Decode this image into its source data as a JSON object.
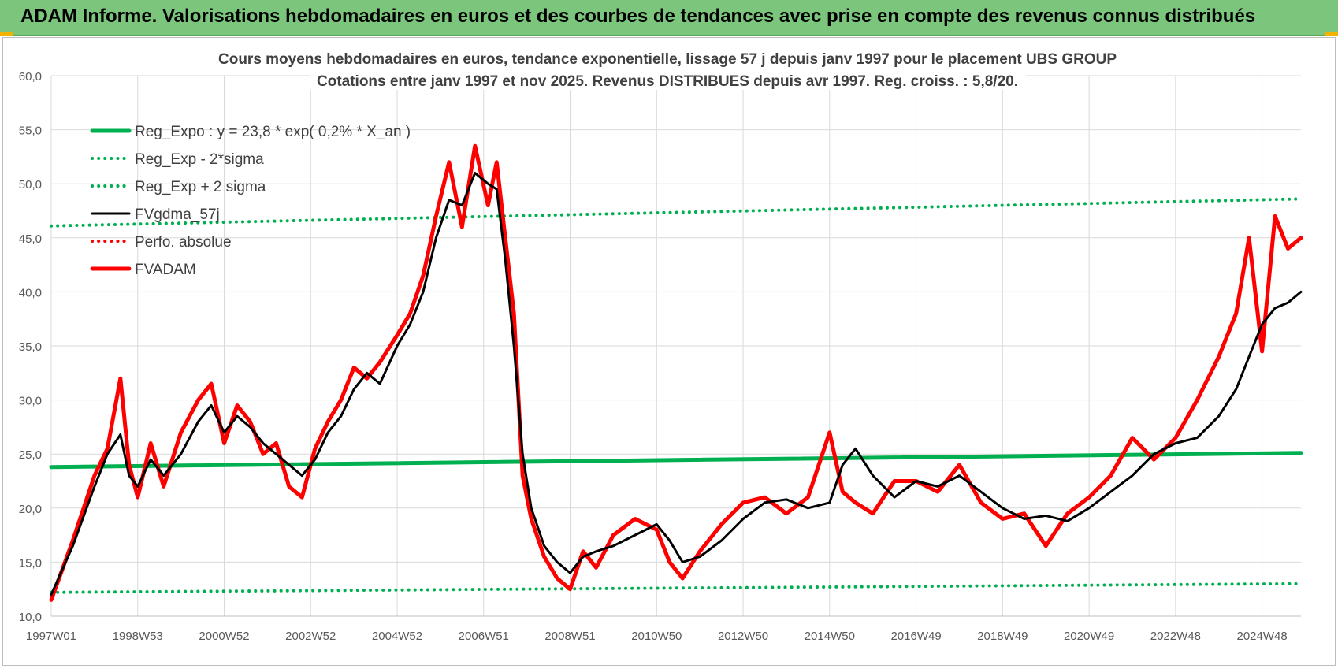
{
  "header": {
    "title": "ADAM Informe. Valorisations hebdomadaires en euros et des courbes de tendances avec prise en compte des revenus connus distribués"
  },
  "colors": {
    "header_bg": "#7cc57d",
    "green": "#00b050",
    "black": "#000000",
    "red": "#ff0000",
    "grid": "#d9d9d9"
  },
  "chart_data": {
    "type": "line",
    "title": "Cours moyens hebdomadaires en euros, tendance exponentielle, lissage 57 j depuis janv 1997  pour le placement UBS GROUP",
    "subtitle": "Cotations entre janv 1997 et nov 2025. Revenus DISTRIBUES depuis avr 1997. Reg. croiss. : 5,8/20.",
    "xlabel": "",
    "ylabel": "",
    "ylim": [
      10,
      60
    ],
    "xlim": [
      1997.0,
      2025.9
    ],
    "y_ticks": [
      "10,0",
      "15,0",
      "20,0",
      "25,0",
      "30,0",
      "35,0",
      "40,0",
      "45,0",
      "50,0",
      "55,0",
      "60,0"
    ],
    "x_ticks": [
      "1997W01",
      "1998W53",
      "2000W52",
      "2002W52",
      "2004W52",
      "2006W51",
      "2008W51",
      "2010W50",
      "2012W50",
      "2014W50",
      "2016W49",
      "2018W49",
      "2020W49",
      "2022W48",
      "2024W48"
    ],
    "x_tick_years": [
      1997.0,
      1999.0,
      2001.0,
      2003.0,
      2005.0,
      2007.0,
      2009.0,
      2011.0,
      2013.0,
      2015.0,
      2017.0,
      2019.0,
      2021.0,
      2023.0,
      2025.0
    ],
    "grid": true,
    "legend_position": "top-left",
    "series": [
      {
        "name": "Reg_Expo : y = 23,8 * exp( 0,2% *  X_an )",
        "style": "solid-thick",
        "color": "#00b050",
        "x": [
          1997.0,
          2025.9
        ],
        "values": [
          23.8,
          25.1
        ]
      },
      {
        "name": "Reg_Exp - 2*sigma",
        "style": "dotted",
        "color": "#00b050",
        "x": [
          1997.0,
          2025.9
        ],
        "values": [
          12.2,
          13.0
        ]
      },
      {
        "name": "Reg_Exp + 2 sigma",
        "style": "dotted",
        "color": "#00b050",
        "x": [
          1997.0,
          2025.9
        ],
        "values": [
          46.1,
          48.6
        ]
      },
      {
        "name": "FVgdma_57j",
        "style": "solid",
        "color": "#000000",
        "x": [
          1997.0,
          1997.5,
          1998.0,
          1998.3,
          1998.6,
          1998.8,
          1999.0,
          1999.3,
          1999.6,
          2000.0,
          2000.4,
          2000.7,
          2001.0,
          2001.3,
          2001.6,
          2001.9,
          2002.2,
          2002.5,
          2002.8,
          2003.1,
          2003.4,
          2003.7,
          2004.0,
          2004.3,
          2004.6,
          2005.0,
          2005.3,
          2005.6,
          2005.9,
          2006.2,
          2006.5,
          2006.8,
          2007.1,
          2007.3,
          2007.5,
          2007.7,
          2007.9,
          2008.1,
          2008.4,
          2008.7,
          2009.0,
          2009.3,
          2009.6,
          2010.0,
          2010.5,
          2011.0,
          2011.3,
          2011.6,
          2012.0,
          2012.5,
          2013.0,
          2013.5,
          2014.0,
          2014.5,
          2015.0,
          2015.3,
          2015.6,
          2016.0,
          2016.5,
          2017.0,
          2017.5,
          2018.0,
          2018.5,
          2019.0,
          2019.5,
          2020.0,
          2020.5,
          2021.0,
          2021.5,
          2022.0,
          2022.5,
          2023.0,
          2023.5,
          2024.0,
          2024.4,
          2024.7,
          2025.0,
          2025.3,
          2025.6,
          2025.9
        ],
        "values": [
          12.0,
          16.5,
          22.0,
          25.0,
          26.8,
          23.0,
          22.0,
          24.5,
          23.0,
          25.0,
          28.0,
          29.5,
          27.0,
          28.5,
          27.5,
          26.0,
          25.0,
          24.0,
          23.0,
          24.5,
          27.0,
          28.5,
          31.0,
          32.5,
          31.5,
          35.0,
          37.0,
          40.0,
          45.0,
          48.5,
          48.0,
          51.0,
          50.0,
          49.5,
          43.0,
          35.0,
          25.0,
          20.0,
          16.5,
          15.0,
          14.0,
          15.5,
          16.0,
          16.5,
          17.5,
          18.5,
          17.0,
          15.0,
          15.5,
          17.0,
          19.0,
          20.5,
          20.8,
          20.0,
          20.5,
          24.0,
          25.5,
          23.0,
          21.0,
          22.5,
          22.0,
          23.0,
          21.5,
          20.0,
          19.0,
          19.3,
          18.8,
          20.0,
          21.5,
          23.0,
          25.0,
          26.0,
          26.5,
          28.5,
          31.0,
          34.0,
          37.0,
          38.5,
          39.0,
          40.0
        ]
      },
      {
        "name": "Perfo. absolue",
        "style": "dotted",
        "color": "#ff0000",
        "x": [],
        "values": []
      },
      {
        "name": "FVADAM",
        "style": "solid-thick",
        "color": "#ff0000",
        "x": [
          1997.0,
          1997.5,
          1998.0,
          1998.3,
          1998.6,
          1998.8,
          1999.0,
          1999.3,
          1999.6,
          2000.0,
          2000.4,
          2000.7,
          2001.0,
          2001.3,
          2001.6,
          2001.9,
          2002.2,
          2002.5,
          2002.8,
          2003.1,
          2003.4,
          2003.7,
          2004.0,
          2004.3,
          2004.6,
          2005.0,
          2005.3,
          2005.6,
          2005.9,
          2006.2,
          2006.5,
          2006.8,
          2007.1,
          2007.3,
          2007.5,
          2007.7,
          2007.9,
          2008.1,
          2008.4,
          2008.7,
          2009.0,
          2009.3,
          2009.6,
          2010.0,
          2010.5,
          2011.0,
          2011.3,
          2011.6,
          2012.0,
          2012.5,
          2013.0,
          2013.5,
          2014.0,
          2014.5,
          2015.0,
          2015.3,
          2015.6,
          2016.0,
          2016.5,
          2017.0,
          2017.5,
          2018.0,
          2018.5,
          2019.0,
          2019.5,
          2020.0,
          2020.5,
          2021.0,
          2021.5,
          2022.0,
          2022.5,
          2023.0,
          2023.5,
          2024.0,
          2024.4,
          2024.7,
          2025.0,
          2025.3,
          2025.6,
          2025.9
        ],
        "values": [
          11.5,
          17.0,
          23.0,
          25.5,
          32.0,
          24.0,
          21.0,
          26.0,
          22.0,
          27.0,
          30.0,
          31.5,
          26.0,
          29.5,
          28.0,
          25.0,
          26.0,
          22.0,
          21.0,
          25.5,
          28.0,
          30.0,
          33.0,
          32.0,
          33.5,
          36.0,
          38.0,
          41.5,
          47.0,
          52.0,
          46.0,
          53.5,
          48.0,
          52.0,
          45.0,
          38.0,
          23.0,
          19.0,
          15.5,
          13.5,
          12.5,
          16.0,
          14.5,
          17.5,
          19.0,
          18.0,
          15.0,
          13.5,
          16.0,
          18.5,
          20.5,
          21.0,
          19.5,
          21.0,
          27.0,
          21.5,
          20.5,
          19.5,
          22.5,
          22.5,
          21.5,
          24.0,
          20.5,
          19.0,
          19.5,
          16.5,
          19.5,
          21.0,
          23.0,
          26.5,
          24.5,
          26.5,
          30.0,
          34.0,
          38.0,
          45.0,
          34.5,
          47.0,
          44.0,
          45.0
        ]
      }
    ]
  }
}
